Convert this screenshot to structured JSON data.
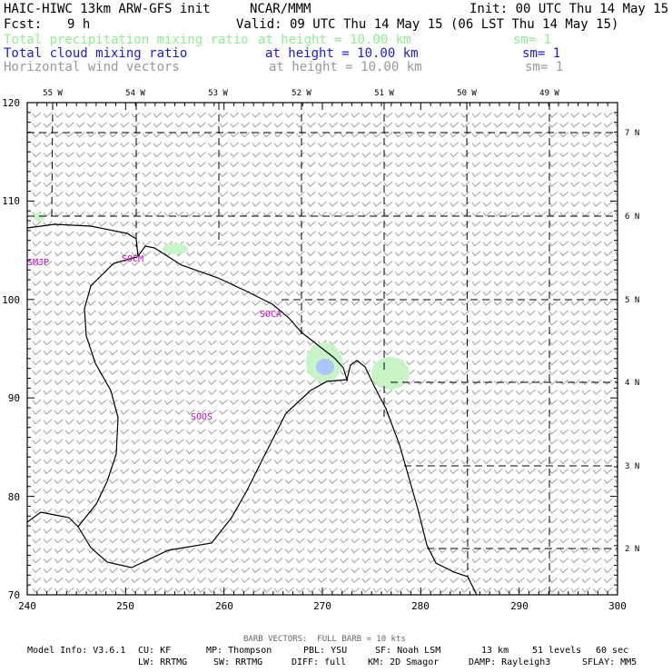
{
  "header": {
    "model": "HAIC-HIWC 13km ARW-GFS init",
    "org": "NCAR/MMM",
    "init": "Init: 00 UTC Thu 14 May 15",
    "fcst_label": "Fcst:",
    "fcst_value": "9 h",
    "valid": "Valid: 09 UTC Thu 14 May 15 (06 LST Thu 14 May 15)"
  },
  "fields": [
    {
      "name": "Total precipitation mixing ratio",
      "level": "at height = 10.00 km",
      "sm": "sm= 1",
      "color": "#90ee90"
    },
    {
      "name": "Total cloud mixing ratio",
      "level": "at height = 10.00 km",
      "sm": "sm= 1",
      "color": "#1a1adc"
    },
    {
      "name": "Horizontal wind vectors",
      "level": "at height = 10.00 km",
      "sm": "sm= 1",
      "color": "#999999"
    }
  ],
  "map": {
    "x_ticks": [
      "240",
      "250",
      "260",
      "270",
      "280",
      "290",
      "300"
    ],
    "y_ticks": [
      "70",
      "80",
      "90",
      "100",
      "110",
      "120"
    ],
    "lon_labels": [
      "55 W",
      "54 W",
      "53 W",
      "52 W",
      "51 W",
      "50 W",
      "49 W"
    ],
    "lat_labels": [
      "7 N",
      "6 N",
      "5 N",
      "4 N",
      "3 N",
      "2 N"
    ],
    "stations": [
      "SMJP",
      "SOCM",
      "SOCA",
      "SOOS"
    ],
    "colors": {
      "coast": "#000000",
      "grid": "#000000",
      "barb": "#a0a0a0",
      "station": "#cc00cc",
      "precip": "#c8f5c8",
      "cloud": "#aac8ff"
    }
  },
  "footer": {
    "barb_note": "BARB VECTORS:  FULL BARB = 10 kts",
    "line1": [
      "Model Info: V3.6.1",
      "CU: KF",
      "MP: Thompson",
      "PBL: YSU",
      "SF: Noah LSM",
      "13 km",
      "51 levels",
      "60 sec"
    ],
    "line2": [
      "LW: RRTMG",
      "SW: RRTMG",
      "DIFF: full",
      "KM: 2D Smagor",
      "DAMP: Rayleigh3",
      "SFLAY: MM5"
    ]
  }
}
